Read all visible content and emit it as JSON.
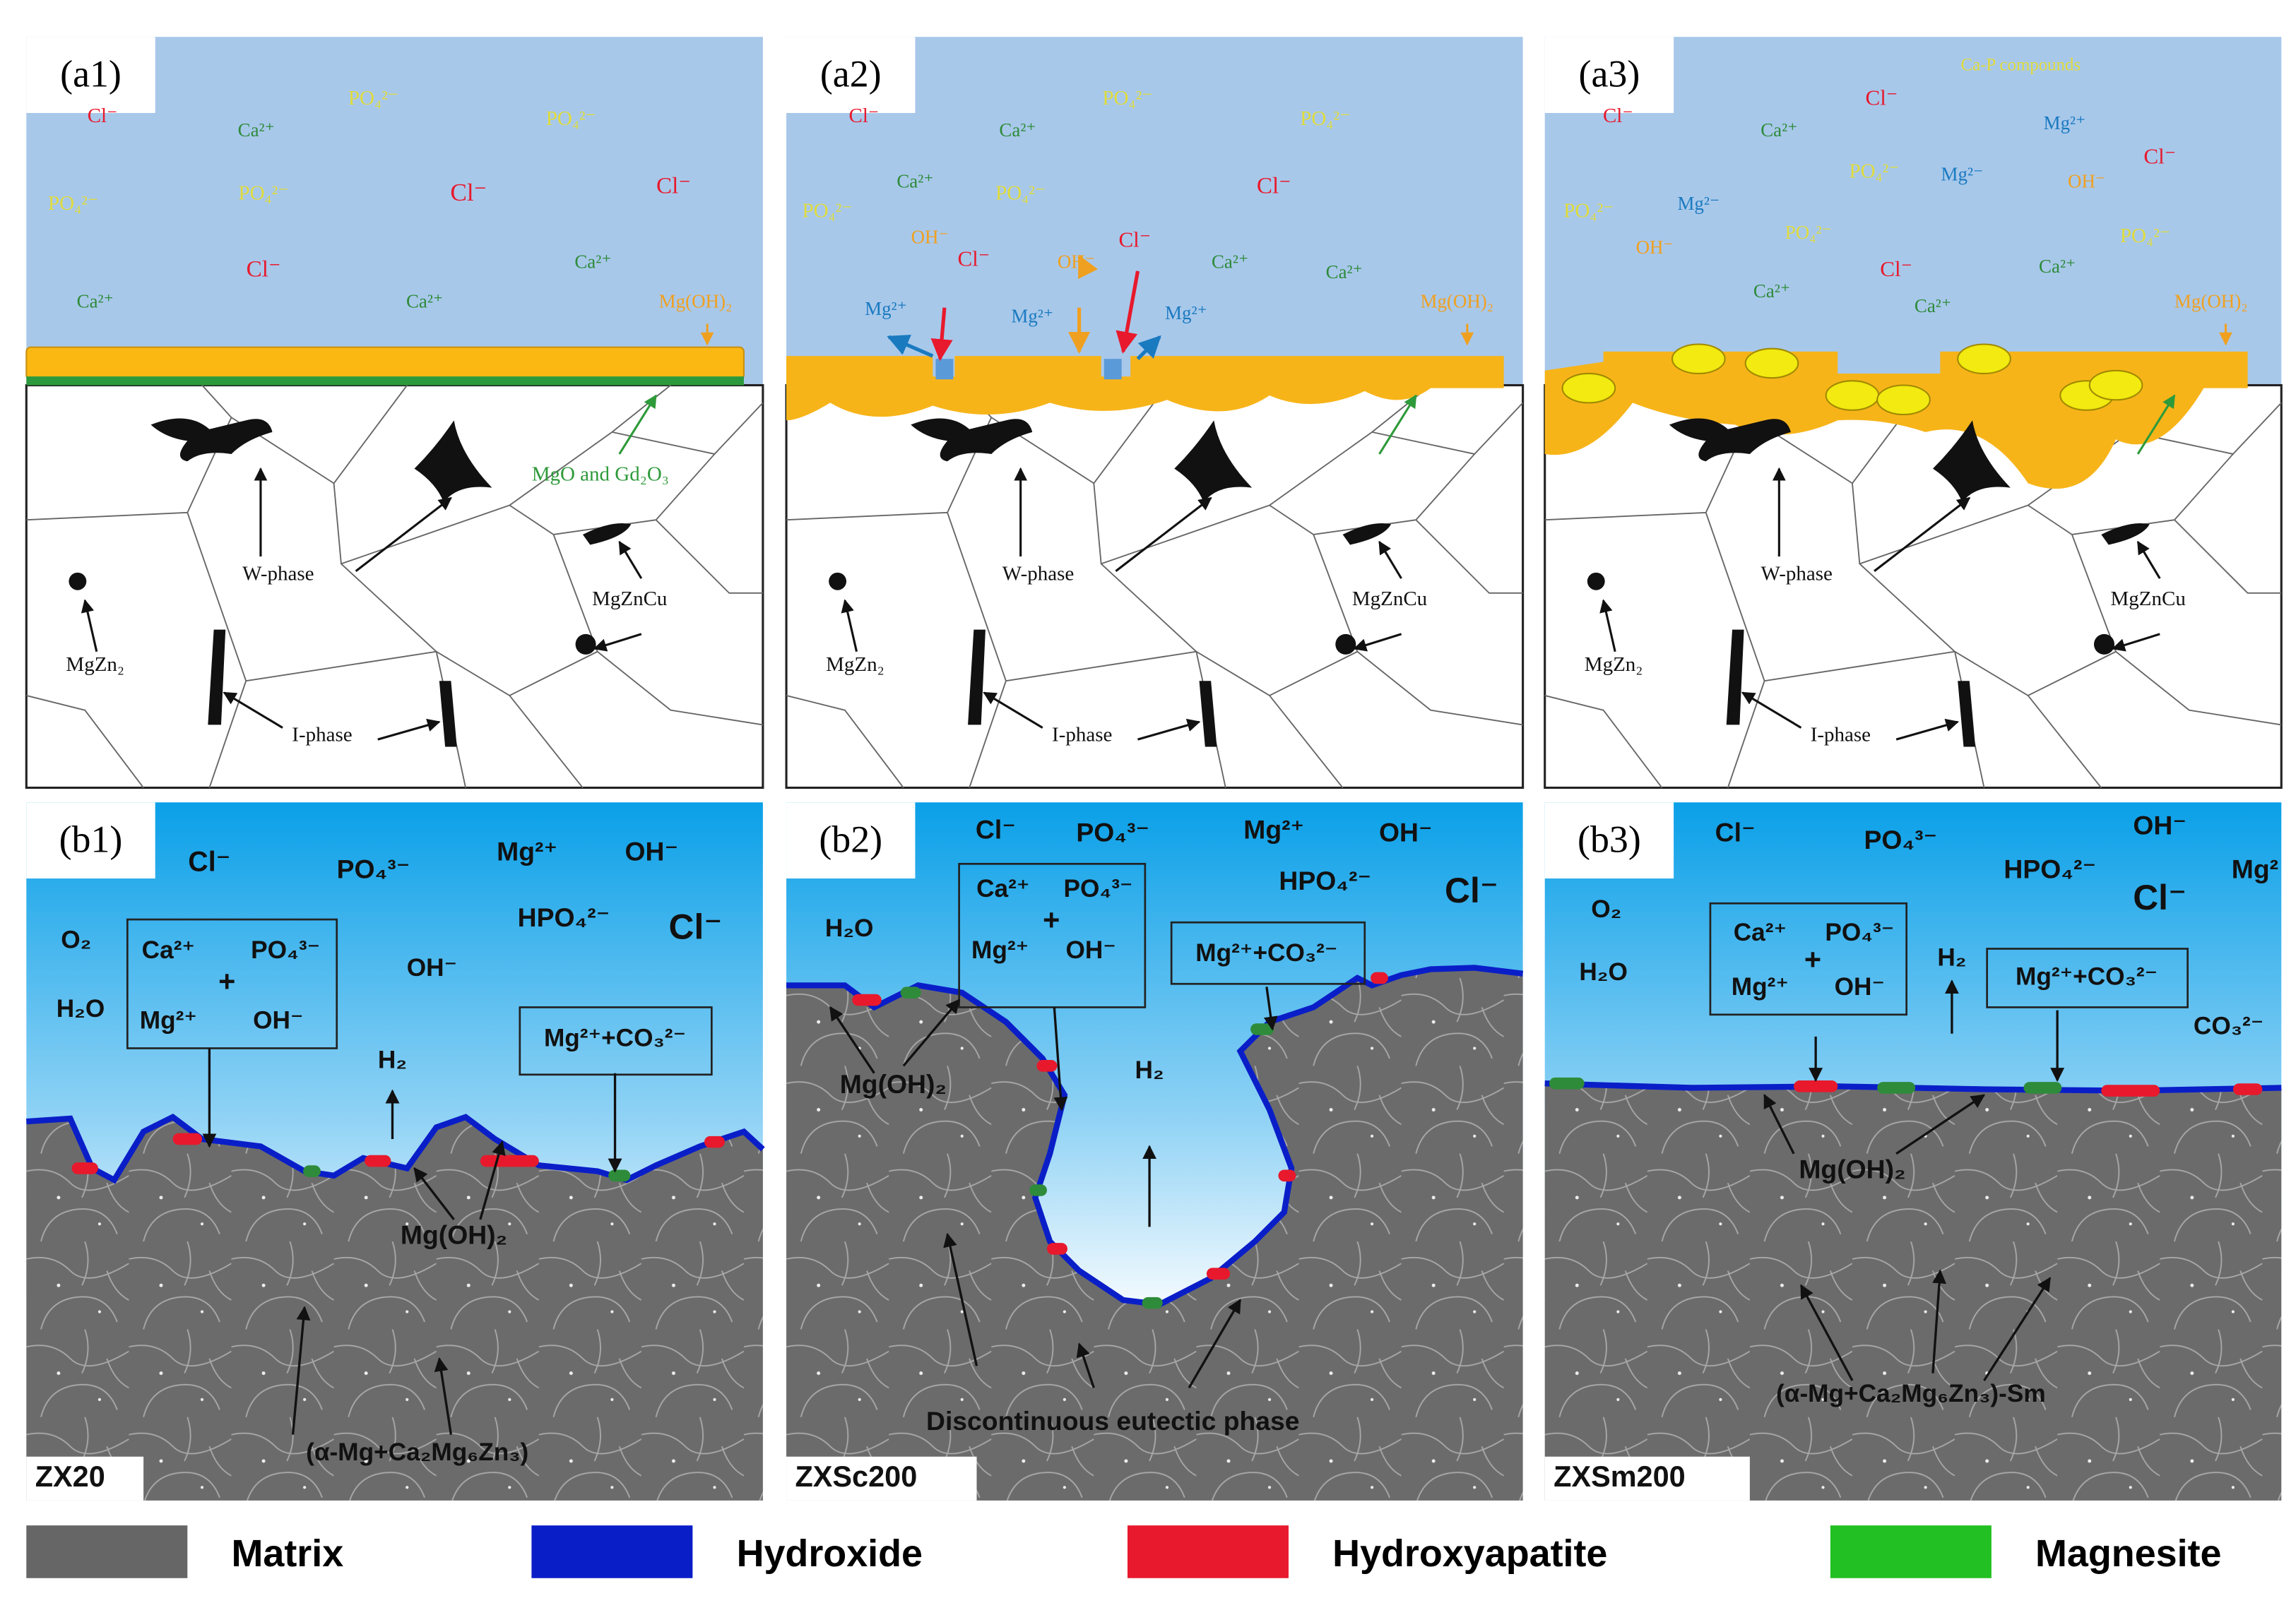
{
  "panels": [
    {
      "label": "(a1)",
      "texts": [
        "Cl⁻",
        "Ca²⁺",
        "PO₄²⁻",
        "PO₄²⁻",
        "PO₄²⁻",
        "PO₄²⁻",
        "Cl⁻",
        "Cl⁻",
        "Cl⁻",
        "Ca²⁺",
        "Ca²⁺",
        "Ca²⁺",
        "Mg(OH)₂",
        "MgO and Gd₂O₃",
        "W-phase",
        "MgZnCu",
        "MgZn₂",
        "I-phase"
      ]
    },
    {
      "label": "(a2)",
      "texts": [
        "Cl⁻",
        "Ca²⁺",
        "PO₄²⁻",
        "PO₄²⁻",
        "Ca²⁺",
        "PO₄²⁻",
        "Cl⁻",
        "PO₄²⁻",
        "OH⁻",
        "Cl⁻",
        "OH⁻",
        "Cl⁻",
        "Ca²⁺",
        "Ca²⁺",
        "Mg²⁺",
        "Mg²⁺",
        "Mg²⁺",
        "Mg(OH)₂",
        "W-phase",
        "MgZnCu",
        "MgZn₂",
        "I-phase"
      ]
    },
    {
      "label": "(a3)",
      "texts": [
        "Ca-P compounds",
        "Cl⁻",
        "Ca²⁺",
        "Cl⁻",
        "Mg²⁺",
        "Cl⁻",
        "PO₄²⁻",
        "Mg²⁻",
        "OH⁻",
        "PO₄²⁻",
        "Mg²⁻",
        "OH⁻",
        "PO₄²⁻",
        "Ca²⁺",
        "Cl⁻",
        "Ca²⁺",
        "Ca²⁺",
        "PO₄²⁻",
        "Mg(OH)₂",
        "W-phase",
        "MgZnCu",
        "MgZn₂",
        "I-phase"
      ]
    },
    {
      "label": "(b1)",
      "texts": [
        "Cl⁻",
        "PO₄³⁻",
        "Mg²⁺",
        "OH⁻",
        "O₂",
        "HPO₄²⁻",
        "Cl⁻",
        "H₂O",
        "OH⁻",
        "Ca²⁺",
        "PO₄³⁻",
        "+",
        "Mg²⁺",
        "OH⁻",
        "H₂",
        "Mg²⁺+CO₃²⁻",
        "Mg(OH)₂",
        "(α-Mg+Ca₂Mg₆Zn₃)",
        "ZX20"
      ]
    },
    {
      "label": "(b2)",
      "texts": [
        "Cl⁻",
        "PO₄³⁻",
        "Mg²⁺",
        "OH⁻",
        "H₂O",
        "HPO₄²⁻",
        "Cl⁻",
        "Ca²⁺",
        "PO₄³⁻",
        "+",
        "Mg²⁺",
        "OH⁻",
        "Mg²⁺+CO₃²⁻",
        "Mg(OH)₂",
        "H₂",
        "Discontinuous eutectic phase",
        "ZXSc200"
      ]
    },
    {
      "label": "(b3)",
      "texts": [
        "Cl⁻",
        "PO₄³⁻",
        "OH⁻",
        "Mg²",
        "O₂",
        "HPO₄²⁻",
        "Cl⁻",
        "H₂O",
        "Ca²⁺",
        "PO₄³⁻",
        "+",
        "Mg²⁺",
        "OH⁻",
        "H₂",
        "Mg²⁺+CO₃²⁻",
        "CO₃²⁻",
        "Mg(OH)₂",
        "(α-Mg+Ca₂Mg₆Zn₃)-Sm",
        "ZXSm200"
      ]
    }
  ],
  "legend": [
    "Matrix",
    "Hydroxide",
    "Hydroxyapatite",
    "Magnesite"
  ]
}
